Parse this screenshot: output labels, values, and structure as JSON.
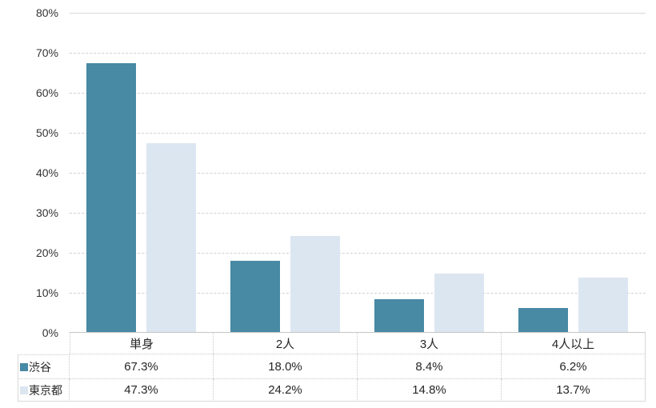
{
  "chart_data": {
    "type": "bar",
    "title": "",
    "categories": [
      "単身",
      "2人",
      "3人",
      "4人以上"
    ],
    "series": [
      {
        "name": "渋谷",
        "color": "#4889A4",
        "values": [
          67.3,
          18.0,
          8.4,
          6.2
        ],
        "labels": [
          "67.3%",
          "18.0%",
          "8.4%",
          "6.2%"
        ]
      },
      {
        "name": "東京都",
        "color": "#DCE6F1",
        "values": [
          47.3,
          24.2,
          14.8,
          13.7
        ],
        "labels": [
          "47.3%",
          "24.2%",
          "14.8%",
          "13.7%"
        ]
      }
    ],
    "ylim": [
      0,
      80
    ],
    "y_tick_step": 10,
    "y_ticks": [
      "80%",
      "70%",
      "60%",
      "50%",
      "40%",
      "30%",
      "20%",
      "10%",
      "0%"
    ],
    "value_suffix": "%",
    "grid": true,
    "gridline_style": "dashed",
    "legend_position": "table-left"
  }
}
